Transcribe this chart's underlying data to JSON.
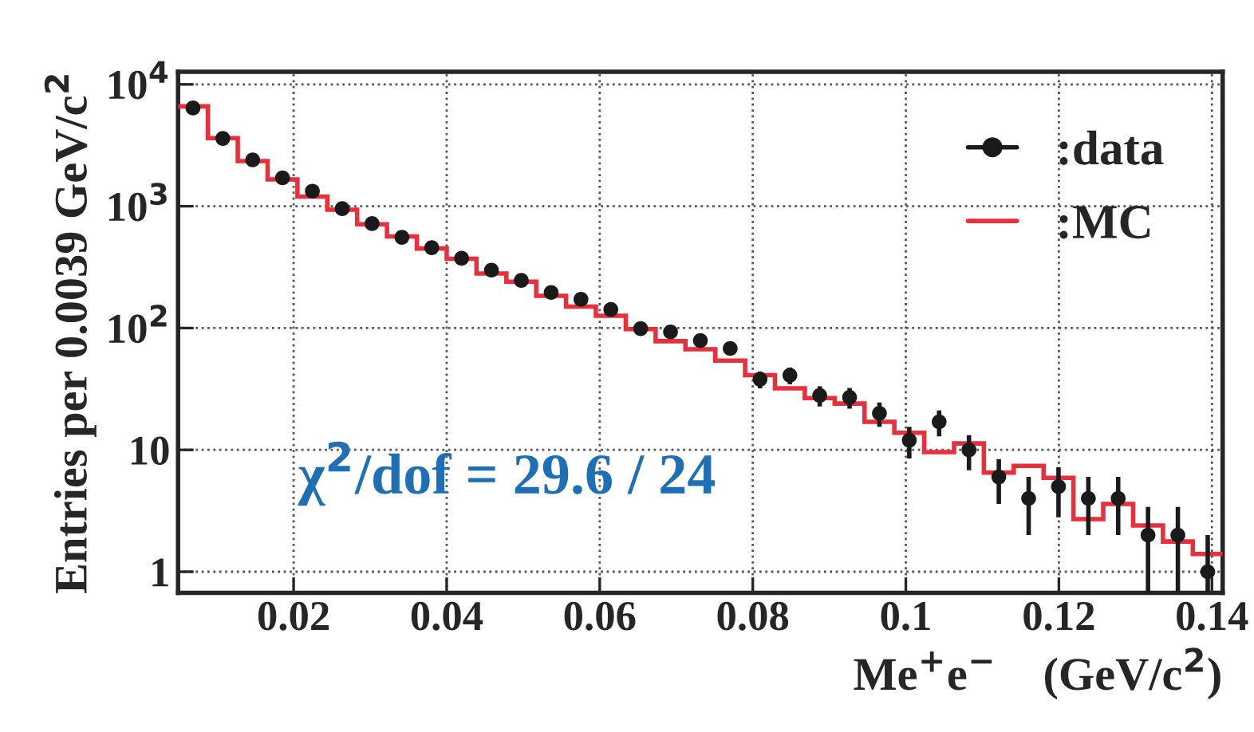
{
  "chart_data": {
    "type": "histogram",
    "xlabel": "Me$^{+}$e$^{−}$    (GeV/c$^{2}$)",
    "ylabel": "Entries per 0.0039 GeV/c$^{2}$",
    "bins": [
      0.0049,
      0.0088,
      0.0127,
      0.0166,
      0.0205,
      0.0244,
      0.0283,
      0.0322,
      0.0361,
      0.04,
      0.0439,
      0.0478,
      0.0517,
      0.0556,
      0.0595,
      0.0634,
      0.0673,
      0.0712,
      0.0751,
      0.079,
      0.0829,
      0.0868,
      0.0907,
      0.0946,
      0.0985,
      0.1024,
      0.1063,
      0.1102,
      0.1141,
      0.118,
      0.1219,
      0.1258,
      0.1297,
      0.1336,
      0.1375,
      0.1414
    ],
    "series": [
      {
        "name": ":data",
        "type": "scatter",
        "color": "#1a1a1a",
        "marker": "circle",
        "x": [
          0.00685,
          0.01075,
          0.01465,
          0.01855,
          0.02245,
          0.02635,
          0.03025,
          0.03415,
          0.03805,
          0.04195,
          0.04585,
          0.04975,
          0.05365,
          0.05755,
          0.06145,
          0.06535,
          0.06925,
          0.07315,
          0.07705,
          0.08095,
          0.08485,
          0.08875,
          0.09265,
          0.09655,
          0.10045,
          0.10435,
          0.10825,
          0.11215,
          0.11605,
          0.11995,
          0.12385,
          0.12775,
          0.13165,
          0.13555,
          0.13945
        ],
        "values": [
          6400,
          3600,
          2400,
          1710,
          1330,
          955,
          720,
          556,
          457,
          374,
          299,
          246,
          196,
          172,
          142,
          99,
          93,
          79,
          68,
          38,
          41,
          28,
          27,
          20,
          12,
          17,
          10,
          6,
          4,
          5,
          4,
          4,
          2,
          2,
          1
        ],
        "errors": [
          null,
          null,
          null,
          null,
          null,
          null,
          null,
          null,
          null,
          null,
          null,
          null,
          null,
          null,
          null,
          null,
          null,
          null,
          null,
          6,
          6.4,
          5.3,
          5.2,
          4.5,
          3.5,
          4.1,
          3.2,
          2.4,
          2,
          2.2,
          2,
          2,
          [
            0.67,
            3.4
          ],
          [
            0.67,
            3.4
          ],
          [
            0.67,
            2.0
          ]
        ]
      },
      {
        "name": ":MC",
        "type": "histogram",
        "color": "#e8303c",
        "values": [
          6600,
          3620,
          2350,
          1660,
          1200,
          935,
          710,
          565,
          450,
          370,
          280,
          240,
          184,
          150,
          126,
          98,
          78,
          67,
          54,
          41,
          32,
          26.6,
          24,
          17,
          13.8,
          9.6,
          11.3,
          6.5,
          7.4,
          5.9,
          2.7,
          3.6,
          2.4,
          1.77,
          1.4
        ]
      }
    ],
    "log": "y",
    "xlim": [
      0.0049,
      0.1414
    ],
    "xticks": [
      0.02,
      0.04,
      0.06,
      0.08,
      0.1,
      0.12,
      0.14
    ],
    "ylim": [
      0.67,
      12700
    ],
    "yticks": [
      1,
      10,
      {
        "value": 100,
        "label": "10$^{2}$"
      },
      {
        "value": 1000,
        "label": "10$^{3}$"
      },
      {
        "value": 10000,
        "label": "10$^{4}$"
      }
    ],
    "grid": true,
    "line_style": "dotted",
    "legend": "top right",
    "annotations": [
      "χ$^{2}$/dof = 29.6 / 24"
    ]
  }
}
